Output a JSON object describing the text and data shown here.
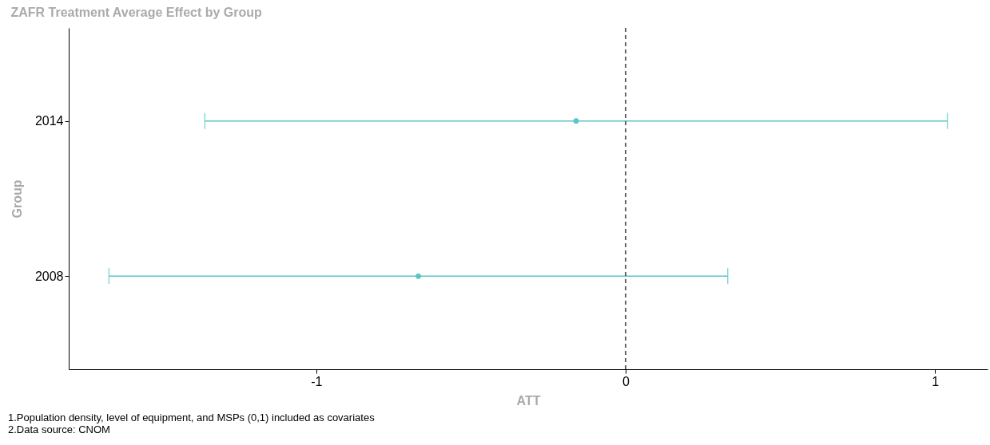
{
  "chart_data": {
    "type": "scatter",
    "orientation": "horizontal",
    "title": "ZAFR Treatment Average Effect by Group",
    "xlabel": "ATT",
    "ylabel": "Group",
    "categories": [
      "2014",
      "2008"
    ],
    "series": [
      {
        "color": "#5bc4c6",
        "values": [
          -0.16,
          -0.67
        ],
        "errors": [
          [
            -1.36,
            1.04
          ],
          [
            -1.67,
            0.33
          ]
        ]
      }
    ],
    "xlim": [
      -1.8,
      1.17
    ],
    "xticks": [
      -1,
      0,
      1
    ],
    "ref_lines": [
      {
        "axis": "x",
        "value": 0,
        "line_style": "dashed",
        "color": "#333333"
      }
    ],
    "grid": false,
    "marker": "circle",
    "annotations": [
      "1.Population density, level of equipment, and MSPs (0,1) included as covariates",
      "2.Data source: CNOM"
    ]
  }
}
